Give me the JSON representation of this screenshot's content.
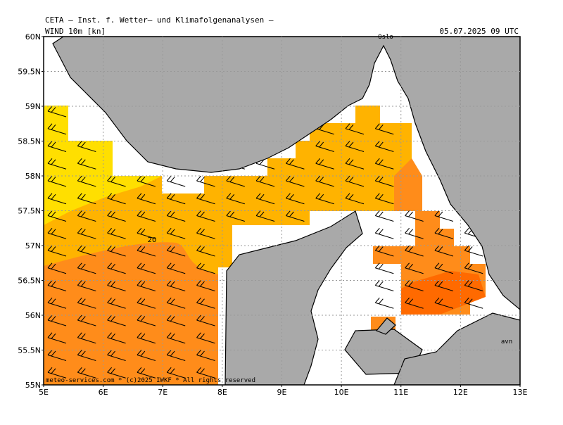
{
  "header": {
    "institute": "CETA – Inst. f. Wetter– und Klimafolgenanalysen –",
    "field": "WIND  10m  [kn]",
    "valid_time": "05.07.2025  09  UTC"
  },
  "map": {
    "lon_range": [
      5,
      13
    ],
    "lat_range": [
      55,
      60
    ],
    "lat_ticks": [
      {
        "value": 60,
        "label": "60N"
      },
      {
        "value": 59.5,
        "label": "59.5N"
      },
      {
        "value": 59,
        "label": "59N"
      },
      {
        "value": 58.5,
        "label": "58.5N"
      },
      {
        "value": 58,
        "label": "58N"
      },
      {
        "value": 57.5,
        "label": "57.5N"
      },
      {
        "value": 57,
        "label": "57N"
      },
      {
        "value": 56.5,
        "label": "56.5N"
      },
      {
        "value": 56,
        "label": "56N"
      },
      {
        "value": 55.5,
        "label": "55.5N"
      },
      {
        "value": 55,
        "label": "55N"
      }
    ],
    "lon_ticks": [
      {
        "value": 5,
        "label": "5E"
      },
      {
        "value": 6,
        "label": "6E"
      },
      {
        "value": 7,
        "label": "7E"
      },
      {
        "value": 8,
        "label": "8E"
      },
      {
        "value": 9,
        "label": "9E"
      },
      {
        "value": 10,
        "label": "10E"
      },
      {
        "value": 11,
        "label": "11E"
      },
      {
        "value": 12,
        "label": "12E"
      },
      {
        "value": 13,
        "label": "13E"
      }
    ],
    "contour_label": "20",
    "place_labels": [
      "Oslo",
      "avn"
    ]
  },
  "footer": "meteo-services.com  *  (c)2025  IWKF  *  All  rights  reserved"
}
